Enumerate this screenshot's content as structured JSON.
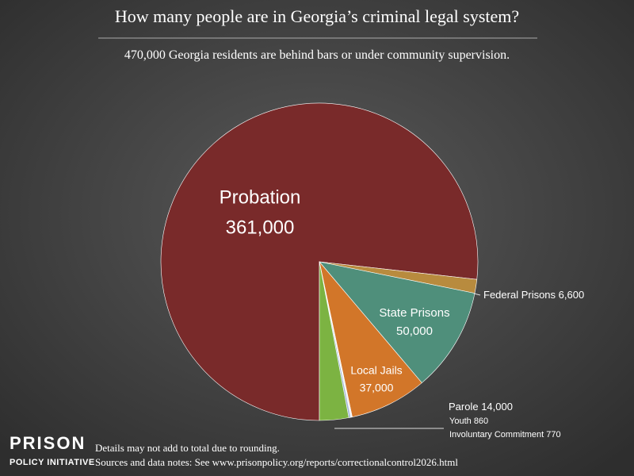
{
  "chart_data": {
    "type": "pie",
    "title": "How many people are in Georgia’s criminal legal system?",
    "subtitle": "470,000 Georgia residents are behind bars or under community supervision.",
    "categories": [
      "Probation",
      "Federal Prisons",
      "State Prisons",
      "Local Jails",
      "Involuntary Commitment",
      "Youth",
      "Parole"
    ],
    "values": [
      361000,
      6600,
      50000,
      37000,
      770,
      860,
      14000
    ],
    "value_labels": [
      "361,000",
      "6,600",
      "50,000",
      "37,000",
      "770",
      "860",
      "14,000"
    ],
    "colors": [
      "#792a2a",
      "#b88b3e",
      "#4f8f7b",
      "#d27629",
      "#f2f2f2",
      "#9fb3d9",
      "#7cb342"
    ],
    "logo": [
      "PRISON",
      "POLICY INITIATIVE"
    ],
    "notes": [
      "Details may not add to total due to rounding.",
      "Sources and data notes: See www.prisonpolicy.org/reports/correctionalcontrol2026.html"
    ]
  }
}
